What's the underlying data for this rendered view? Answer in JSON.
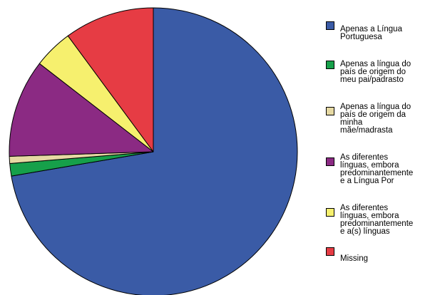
{
  "chart_data": {
    "type": "pie",
    "title": "",
    "legend_position": "right",
    "slices": [
      {
        "label": "Apenas a Língua\nPortuguesa",
        "value": 72.3,
        "color": "#3A5BA6"
      },
      {
        "label": "Apenas a língua do\npaís de origem do\nmeu pai/padrasto",
        "value": 1.4,
        "color": "#16A04A"
      },
      {
        "label": "Apenas a língua do\npaís de origem da\nminha\nmãe/madrasta",
        "value": 0.8,
        "color": "#E6D9A3"
      },
      {
        "label": "As diferentes\nlínguas, embora\npredominantemente\ne a Língua Por",
        "value": 11.0,
        "color": "#8B2A83"
      },
      {
        "label": "As diferentes\nlínguas, embora\npredominantemente\ne a(s) línguas",
        "value": 4.4,
        "color": "#F6F06E"
      },
      {
        "label": "Missing",
        "value": 10.1,
        "color": "#E63C44"
      }
    ]
  }
}
